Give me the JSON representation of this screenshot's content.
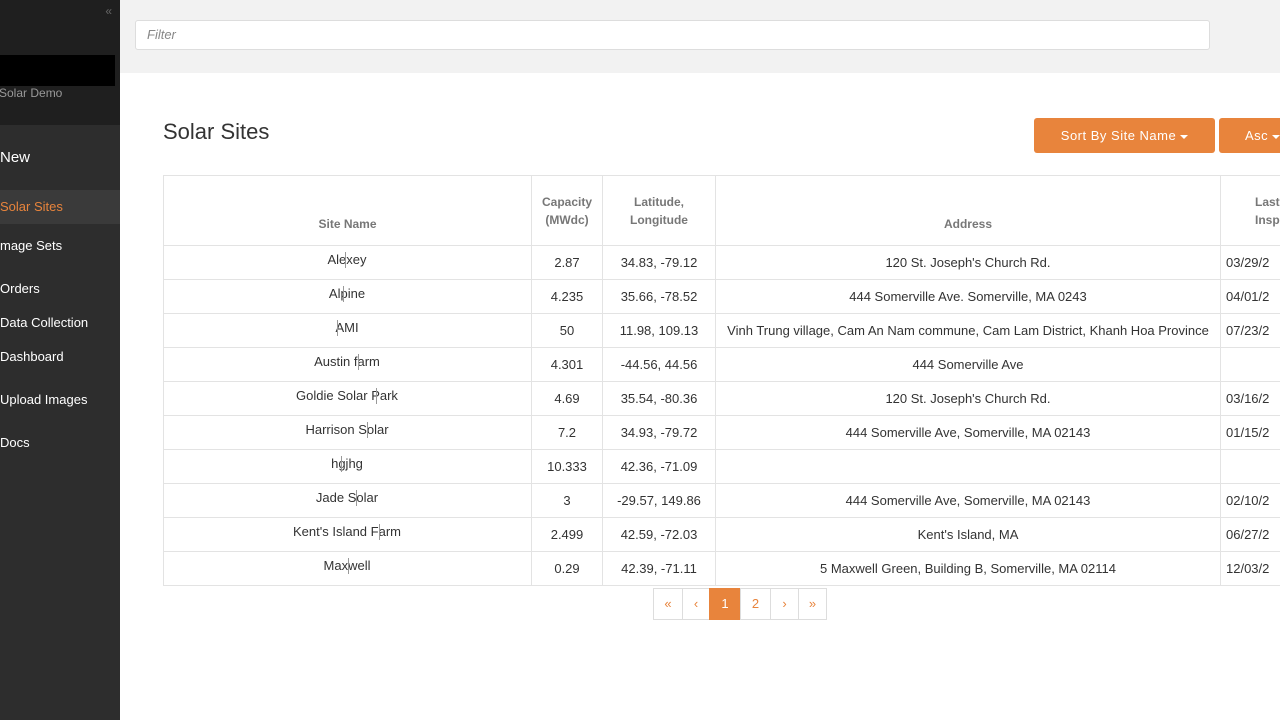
{
  "sidebar": {
    "collapse_icon": "«",
    "brand": "Solar Demo",
    "nav": [
      "New",
      "Solar Sites",
      "mage Sets",
      "Orders",
      "Data Collection",
      "Dashboard",
      "Upload Images",
      "Docs"
    ],
    "active": 1
  },
  "filter": {
    "placeholder": "Filter"
  },
  "header": {
    "title": "Solar Sites",
    "sort_button": "Sort By Site Name",
    "order_button": "Asc"
  },
  "table": {
    "columns": [
      "Site Name",
      "Capacity (MWdc)",
      "Latitude, Longitude",
      "Address",
      "Last Inspect"
    ],
    "rows": [
      [
        "Alexey",
        "2.87",
        "34.83, -79.12",
        "120 St. Joseph's Church Rd.",
        "03/29/2"
      ],
      [
        "Alpine",
        "4.235",
        "35.66, -78.52",
        "444 Somerville Ave. Somerville, MA 0243",
        "04/01/2"
      ],
      [
        "AMI",
        "50",
        "11.98, 109.13",
        "Vinh Trung village, Cam An Nam commune, Cam Lam District, Khanh Hoa Province",
        "07/23/2"
      ],
      [
        "Austin farm",
        "4.301",
        "-44.56, 44.56",
        "444 Somerville Ave",
        null
      ],
      [
        "Goldie Solar Park",
        "4.69",
        "35.54, -80.36",
        "120 St. Joseph's Church Rd.",
        "03/16/2"
      ],
      [
        "Harrison Solar",
        "7.2",
        "34.93, -79.72",
        "444 Somerville Ave, Somerville, MA 02143",
        "01/15/2"
      ],
      [
        "hgjhg",
        "10.333",
        "42.36, -71.09",
        null,
        null
      ],
      [
        "Jade Solar",
        "3",
        "-29.57, 149.86",
        "444 Somerville Ave, Somerville, MA 02143",
        "02/10/2"
      ],
      [
        "Kent's Island Farm",
        "2.499",
        "42.59, -72.03",
        "Kent's Island, MA",
        "06/27/2"
      ],
      [
        "Maxwell",
        "0.29",
        "42.39, -71.11",
        "5 Maxwell Green, Building B, Somerville, MA 02114",
        "12/03/2"
      ]
    ]
  },
  "pagination": {
    "items": [
      "«",
      "‹",
      "1",
      "2",
      "›",
      "»"
    ],
    "active": 2
  }
}
